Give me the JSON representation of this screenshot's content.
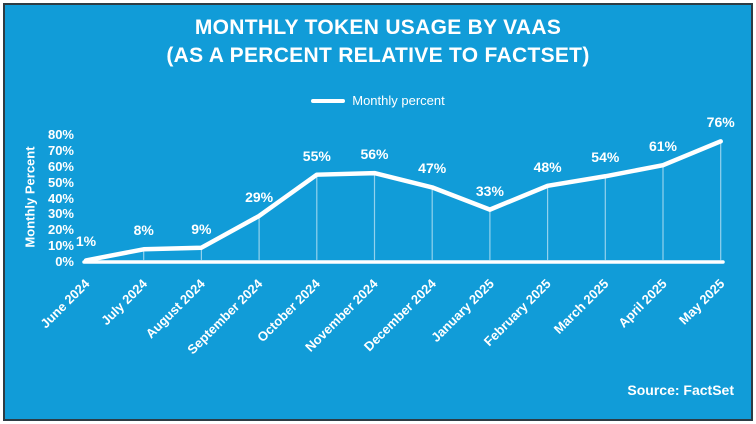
{
  "window": {
    "background_color": "#119CD8",
    "border_color": "#2d3c44",
    "text_color": "#ffffff"
  },
  "chart_data": {
    "type": "line",
    "title_line1": "MONTHLY TOKEN USAGE BY VAAS",
    "title_line2": "(AS A PERCENT RELATIVE TO FACTSET)",
    "legend": {
      "label": "Monthly percent",
      "position": "top-center",
      "swatch_color": "#ffffff"
    },
    "categories": [
      "June 2024",
      "July 2024",
      "August 2024",
      "September 2024",
      "October 2024",
      "November 2024",
      "December 2024",
      "January 2025",
      "February 2025",
      "March 2025",
      "April 2025",
      "May 2025"
    ],
    "series": [
      {
        "name": "Monthly percent",
        "values": [
          1,
          8,
          9,
          29,
          55,
          56,
          47,
          33,
          48,
          54,
          61,
          76
        ],
        "color": "#ffffff"
      }
    ],
    "data_labels": [
      "1%",
      "8%",
      "9%",
      "29%",
      "55%",
      "56%",
      "47%",
      "33%",
      "48%",
      "54%",
      "61%",
      "76%"
    ],
    "xlabel": "",
    "ylabel": "Monthly Percent",
    "ylim": [
      0,
      80
    ],
    "ytick_step": 10,
    "ytick_labels": [
      "0%",
      "10%",
      "20%",
      "30%",
      "40%",
      "50%",
      "60%",
      "70%",
      "80%"
    ],
    "grid": false,
    "drop_lines": true,
    "source": "Source: FactSet"
  }
}
